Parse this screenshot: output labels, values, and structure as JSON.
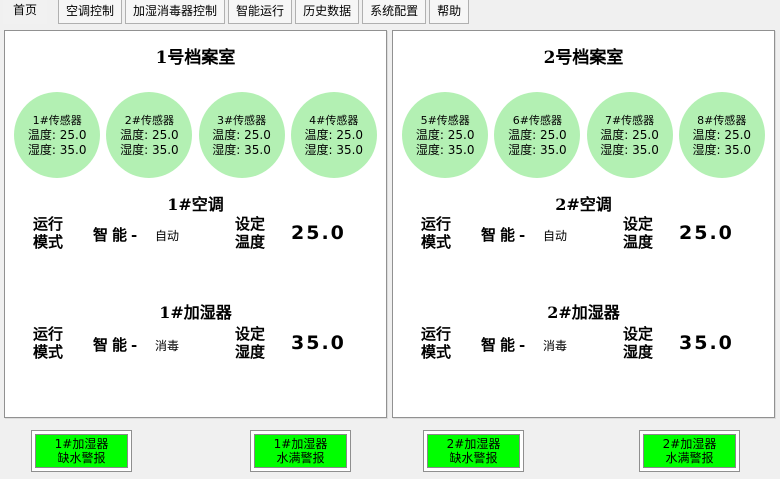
{
  "tabs": [
    {
      "label": "首页",
      "active": true
    },
    {
      "label": "空调控制",
      "active": false
    },
    {
      "label": "加湿消毒器控制",
      "active": false
    },
    {
      "label": "智能运行",
      "active": false
    },
    {
      "label": "历史数据",
      "active": false
    },
    {
      "label": "系统配置",
      "active": false
    },
    {
      "label": "帮助",
      "active": false
    }
  ],
  "rooms": [
    {
      "title": "1号档案室",
      "sensors": [
        {
          "name": "1#传感器",
          "temp_label": "温度:",
          "temp": "25.0",
          "hum_label": "湿度:",
          "hum": "35.0"
        },
        {
          "name": "2#传感器",
          "temp_label": "温度:",
          "temp": "25.0",
          "hum_label": "湿度:",
          "hum": "35.0"
        },
        {
          "name": "3#传感器",
          "temp_label": "温度:",
          "temp": "25.0",
          "hum_label": "湿度:",
          "hum": "35.0"
        },
        {
          "name": "4#传感器",
          "temp_label": "温度:",
          "temp": "25.0",
          "hum_label": "湿度:",
          "hum": "35.0"
        }
      ],
      "ac": {
        "title": "1#空调",
        "mode_label1": "运行",
        "mode_label2": "模式",
        "mode_value": "智能-",
        "mode_sub": "自动",
        "set_label1": "设定",
        "set_label2": "温度",
        "set_value": "25.0"
      },
      "humidifier": {
        "title": "1#加湿器",
        "mode_label1": "运行",
        "mode_label2": "模式",
        "mode_value": "智能-",
        "mode_sub": "消毒",
        "set_label1": "设定",
        "set_label2": "湿度",
        "set_value": "35.0"
      }
    },
    {
      "title": "2号档案室",
      "sensors": [
        {
          "name": "5#传感器",
          "temp_label": "温度:",
          "temp": "25.0",
          "hum_label": "湿度:",
          "hum": "35.0"
        },
        {
          "name": "6#传感器",
          "temp_label": "温度:",
          "temp": "25.0",
          "hum_label": "湿度:",
          "hum": "35.0"
        },
        {
          "name": "7#传感器",
          "temp_label": "温度:",
          "temp": "25.0",
          "hum_label": "湿度:",
          "hum": "35.0"
        },
        {
          "name": "8#传感器",
          "temp_label": "温度:",
          "temp": "25.0",
          "hum_label": "湿度:",
          "hum": "35.0"
        }
      ],
      "ac": {
        "title": "2#空调",
        "mode_label1": "运行",
        "mode_label2": "模式",
        "mode_value": "智能-",
        "mode_sub": "自动",
        "set_label1": "设定",
        "set_label2": "温度",
        "set_value": "25.0"
      },
      "humidifier": {
        "title": "2#加湿器",
        "mode_label1": "运行",
        "mode_label2": "模式",
        "mode_value": "智能-",
        "mode_sub": "消毒",
        "set_label1": "设定",
        "set_label2": "湿度",
        "set_value": "35.0"
      }
    }
  ],
  "alarms": [
    {
      "line1": "1#加湿器",
      "line2": "缺水警报"
    },
    {
      "line1": "1#加湿器",
      "line2": "水满警报"
    },
    {
      "line1": "2#加湿器",
      "line2": "缺水警报"
    },
    {
      "line1": "2#加湿器",
      "line2": "水满警报"
    }
  ],
  "colors": {
    "sensor_green": "#b3f0b3",
    "alarm_green": "#00ff00",
    "panel_bg": "#ffffff",
    "page_bg": "#f0f0f0"
  }
}
